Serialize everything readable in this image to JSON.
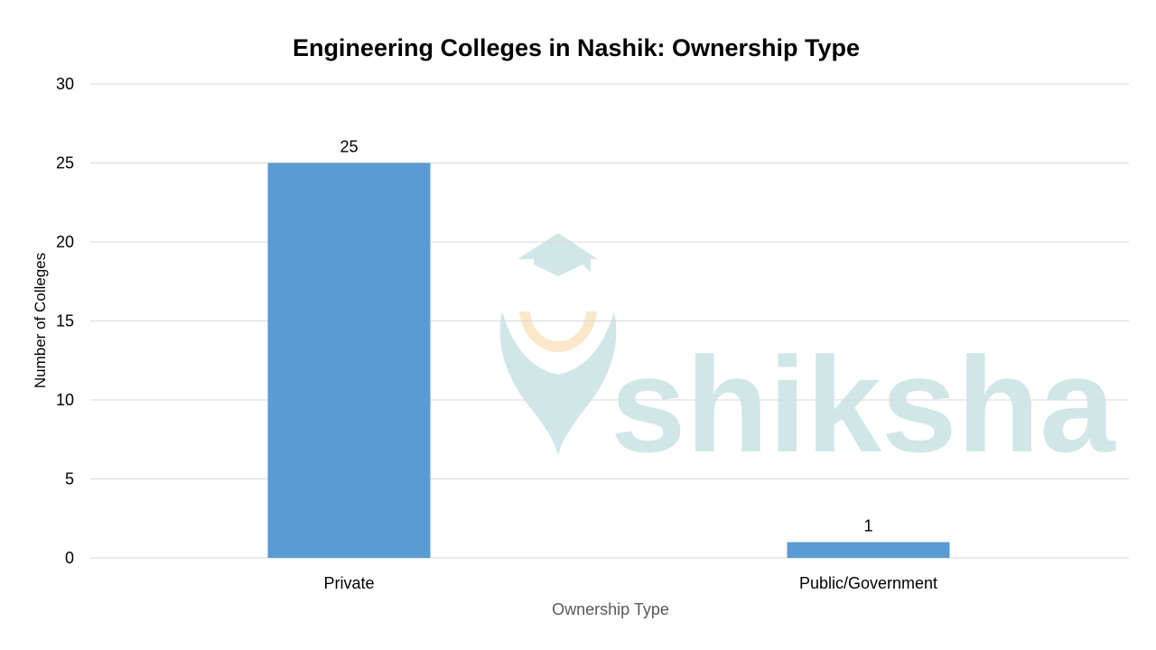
{
  "chart_data": {
    "type": "bar",
    "title": "Engineering Colleges in Nashik: Ownership Type",
    "xlabel": "Ownership Type",
    "ylabel": "Number of Colleges",
    "categories": [
      "Private",
      "Public/Government"
    ],
    "values": [
      25,
      1
    ],
    "data_labels": [
      "25",
      "1"
    ],
    "ylim": [
      0,
      30
    ],
    "yticks": [
      0,
      5,
      10,
      15,
      20,
      25,
      30
    ],
    "grid": true,
    "legend": "none",
    "bar_color": "#5b9bd5",
    "gridline_color": "#d9d9d9"
  },
  "watermark": {
    "text": "shiksha",
    "text_color": "#cfe6e6",
    "accent_color": "#fbe6c8",
    "icon": "graduation-cap-logo-icon"
  }
}
